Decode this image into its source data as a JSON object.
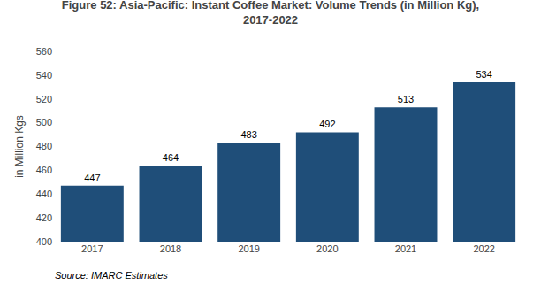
{
  "chart_data": {
    "type": "bar",
    "title": "Figure 52: Asia-Pacific: Instant Coffee Market: Volume Trends (in Million Kg),\n2017-2022",
    "ylabel": "in Million Kgs",
    "annotations": [
      "Source: IMARC Estimates"
    ],
    "categories": [
      "2017",
      "2018",
      "2019",
      "2020",
      "2021",
      "2022"
    ],
    "values": [
      447,
      464,
      483,
      492,
      513,
      534
    ],
    "color": "#1f4e79",
    "ylim": [
      400,
      560
    ],
    "yticks": [
      400,
      420,
      440,
      460,
      480,
      500,
      520,
      540,
      560
    ],
    "grid": false,
    "data_labels": true
  }
}
